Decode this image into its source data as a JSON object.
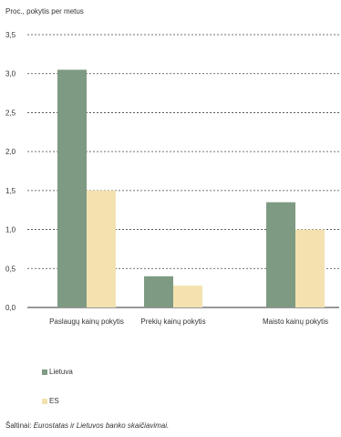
{
  "chart_data": {
    "type": "bar",
    "ylabel": "Proc., pokytis per metus",
    "ylim": [
      0,
      3.5
    ],
    "yticks": [
      "0,0",
      "0,5",
      "1,0",
      "1,5",
      "2,0",
      "2,5",
      "3,0",
      "3,5"
    ],
    "grid": true,
    "categories": [
      "Paslaugų kainų pokytis",
      "Prekių kainų pokytis",
      "Maisto kainų pokytis"
    ],
    "series": [
      {
        "name": "Lietuva",
        "color": "#7f9a82",
        "values": [
          3.05,
          0.4,
          1.35
        ]
      },
      {
        "name": "ES",
        "color": "#f3e2b0",
        "values": [
          1.5,
          0.28,
          1.0
        ]
      }
    ],
    "legend_placement": "bottom-left"
  },
  "legend": [
    {
      "label": "Lietuva",
      "color": "#7f9a82"
    },
    {
      "label": "ES",
      "color": "#f3e2b0"
    }
  ],
  "source": {
    "prefix": "Šaltinai:",
    "text": "Eurostatas ir Lietuvos banko skaičiavimai."
  }
}
